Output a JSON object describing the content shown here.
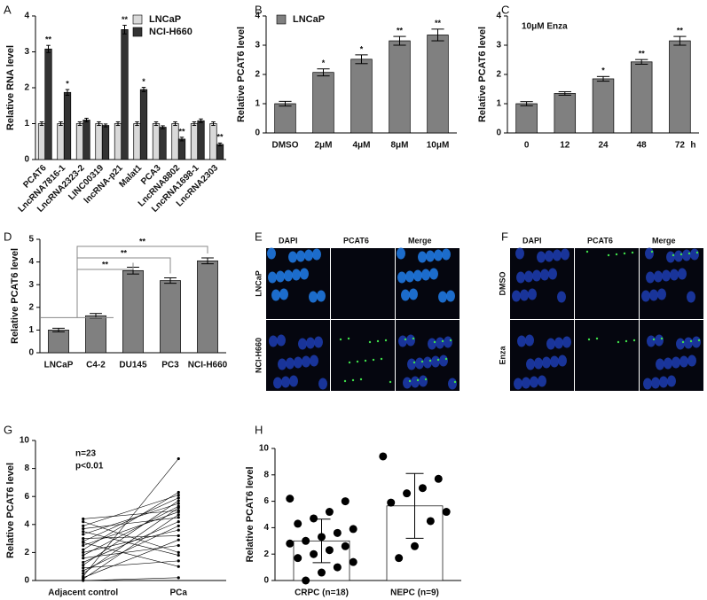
{
  "chart_data": [
    {
      "type": "bar",
      "panel_label": "A",
      "ylabel": "Relative RNA level",
      "categories": [
        "PCAT6",
        "LncRNA7816-1",
        "LncRNA2323-2",
        "LINC00319",
        "lncRNA-p21",
        "Malat1",
        "PCA3",
        "LncRNA8802",
        "LncRNA1698-1",
        "LncRNA2303"
      ],
      "series": [
        {
          "name": "LNCaP",
          "color": "#d9d9d9",
          "values": [
            1,
            1,
            1,
            1,
            1,
            1,
            1,
            1,
            1,
            1
          ],
          "errors": [
            0.05,
            0.05,
            0.05,
            0.05,
            0.05,
            0.05,
            0.05,
            0.05,
            0.05,
            0.05
          ],
          "significance": [
            null,
            null,
            null,
            null,
            null,
            null,
            null,
            null,
            null,
            null
          ]
        },
        {
          "name": "NCI-H660",
          "color": "#333333",
          "values": [
            3.08,
            1.87,
            1.1,
            0.95,
            3.62,
            1.95,
            0.9,
            0.57,
            1.08,
            0.42
          ],
          "errors": [
            0.1,
            0.08,
            0.05,
            0.04,
            0.12,
            0.06,
            0.04,
            0.05,
            0.05,
            0.04
          ],
          "significance": [
            "**",
            "*",
            null,
            null,
            "**",
            "*",
            null,
            "**",
            null,
            "**"
          ]
        }
      ],
      "ylim": [
        0,
        4
      ],
      "yticks": [
        0,
        1,
        2,
        3,
        4
      ],
      "legend": "upper right"
    },
    {
      "type": "bar",
      "panel_label": "B",
      "ylabel": "Relative PCAT6 level",
      "categories": [
        "DMSO",
        "2μM",
        "4μM",
        "8μM",
        "10μM"
      ],
      "series": [
        {
          "name": "LNCaP",
          "color": "#808080",
          "values": [
            1,
            2.07,
            2.52,
            3.15,
            3.35
          ],
          "errors": [
            0.08,
            0.12,
            0.15,
            0.15,
            0.2
          ],
          "significance": [
            null,
            "*",
            "*",
            "**",
            "**"
          ]
        }
      ],
      "ylim": [
        0,
        4
      ],
      "yticks": [
        0,
        1,
        2,
        3,
        4
      ],
      "legend": "upper left"
    },
    {
      "type": "bar",
      "panel_label": "C",
      "ylabel": "Relative PCAT6 level",
      "xlabel": "h",
      "annotation": "10μM Enza",
      "categories": [
        "0",
        "12",
        "24",
        "48",
        "72"
      ],
      "series": [
        {
          "color": "#808080",
          "values": [
            1,
            1.35,
            1.85,
            2.43,
            3.15
          ],
          "errors": [
            0.07,
            0.06,
            0.08,
            0.08,
            0.15
          ],
          "significance": [
            null,
            null,
            "*",
            "**",
            "**"
          ]
        }
      ],
      "ylim": [
        0,
        4
      ],
      "yticks": [
        0,
        1,
        2,
        3,
        4
      ]
    },
    {
      "type": "bar",
      "panel_label": "D",
      "ylabel": "Relative PCAT6 level",
      "categories": [
        "LNCaP",
        "C4-2",
        "DU145",
        "PC3",
        "NCI-H660"
      ],
      "series": [
        {
          "color": "#808080",
          "values": [
            1,
            1.63,
            3.62,
            3.18,
            4.05
          ],
          "errors": [
            0.08,
            0.1,
            0.15,
            0.12,
            0.13
          ],
          "significance": [
            null,
            null,
            "**",
            "**",
            "**"
          ]
        }
      ],
      "ylim": [
        0,
        5
      ],
      "yticks": [
        0,
        1,
        2,
        3,
        4,
        5
      ],
      "comparison": "bracket"
    },
    {
      "type": "line",
      "panel_label": "G",
      "ylabel": "Relative PCAT6 level",
      "categories": [
        "Adjacent control",
        "PCa"
      ],
      "annotations": [
        "n=23",
        "p<0.01"
      ],
      "series": [
        {
          "color": "#000000",
          "values": [
            4.4,
            5.0
          ]
        },
        {
          "color": "#000000",
          "values": [
            4.2,
            2.0
          ]
        },
        {
          "color": "#000000",
          "values": [
            3.9,
            6.1
          ]
        },
        {
          "color": "#000000",
          "values": [
            3.7,
            4.5
          ]
        },
        {
          "color": "#000000",
          "values": [
            3.5,
            1.8
          ]
        },
        {
          "color": "#000000",
          "values": [
            3.3,
            5.5
          ]
        },
        {
          "color": "#000000",
          "values": [
            3.0,
            3.2
          ]
        },
        {
          "color": "#000000",
          "values": [
            2.8,
            5.9
          ]
        },
        {
          "color": "#000000",
          "values": [
            2.7,
            1.0
          ]
        },
        {
          "color": "#000000",
          "values": [
            2.5,
            4.9
          ]
        },
        {
          "color": "#000000",
          "values": [
            2.2,
            6.3
          ]
        },
        {
          "color": "#000000",
          "values": [
            2.0,
            3.6
          ]
        },
        {
          "color": "#000000",
          "values": [
            1.8,
            5.3
          ]
        },
        {
          "color": "#000000",
          "values": [
            1.6,
            2.5
          ]
        },
        {
          "color": "#000000",
          "values": [
            1.3,
            4.2
          ]
        },
        {
          "color": "#000000",
          "values": [
            1.1,
            5.7
          ]
        },
        {
          "color": "#000000",
          "values": [
            0.9,
            1.4
          ]
        },
        {
          "color": "#000000",
          "values": [
            0.7,
            3.9
          ]
        },
        {
          "color": "#000000",
          "values": [
            0.5,
            5.2
          ]
        },
        {
          "color": "#000000",
          "values": [
            0.3,
            8.7
          ]
        },
        {
          "color": "#000000",
          "values": [
            0.2,
            2.9
          ]
        },
        {
          "color": "#000000",
          "values": [
            0.1,
            4.7
          ]
        },
        {
          "color": "#000000",
          "values": [
            0.0,
            0.2
          ]
        }
      ],
      "ylim": [
        0,
        10
      ],
      "yticks": [
        0,
        2,
        4,
        6,
        8,
        10
      ]
    },
    {
      "type": "bar",
      "panel_label": "H",
      "ylabel": "Relative PCAT6 level",
      "categories": [
        "CRPC (n=18)",
        "NEPC (n=9)"
      ],
      "series": [
        {
          "color": "#ffffff",
          "values": [
            3.0,
            5.65
          ],
          "errors": [
            1.65,
            2.45
          ],
          "significance": [
            null,
            null
          ],
          "points": [
            [
              6.2,
              6.0,
              5.2,
              4.7,
              4.3,
              3.9,
              3.6,
              3.3,
              3.0,
              2.8,
              2.6,
              2.3,
              2.0,
              1.7,
              1.4,
              1.0,
              0.6,
              0.0
            ],
            [
              9.4,
              7.7,
              7.0,
              6.6,
              5.9,
              5.2,
              4.5,
              2.6,
              1.7
            ]
          ]
        }
      ],
      "ylim": [
        0,
        10
      ],
      "yticks": [
        0,
        2,
        4,
        6,
        8,
        10
      ]
    }
  ],
  "images": [
    {
      "panel_label": "E",
      "columns": [
        "DAPI",
        "PCAT6",
        "Merge"
      ],
      "rows": [
        "LNCaP",
        "NCI-H660"
      ]
    },
    {
      "panel_label": "F",
      "columns": [
        "DAPI",
        "PCAT6",
        "Merge"
      ],
      "rows": [
        "DMSO",
        "Enza"
      ]
    }
  ]
}
